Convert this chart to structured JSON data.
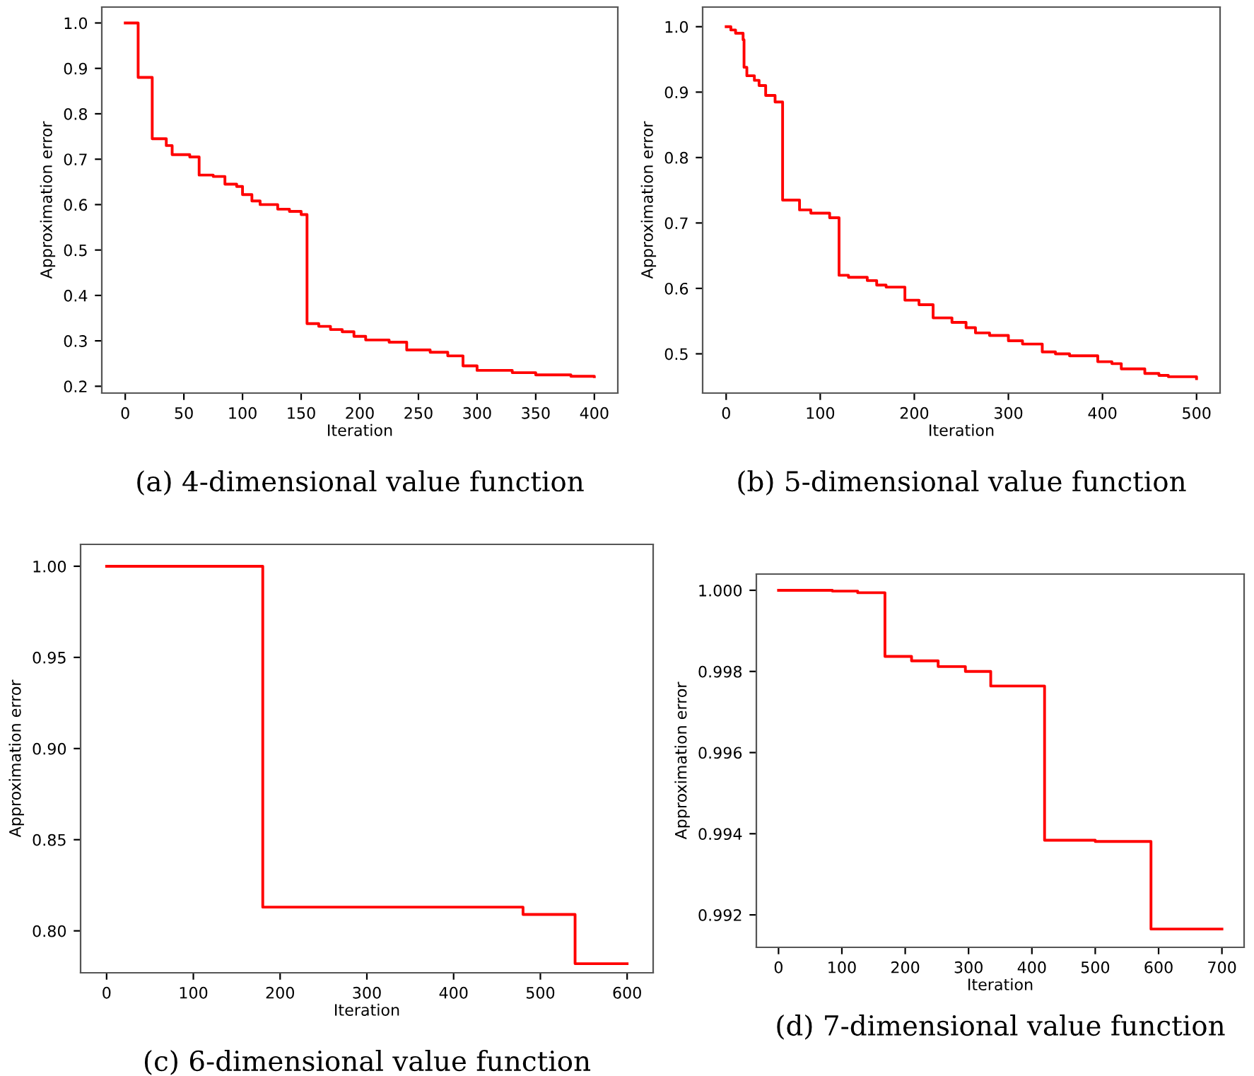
{
  "chart_data": [
    {
      "type": "step",
      "title": "(a) 4-dimensional value function",
      "xlabel": "Iteration",
      "ylabel": "Approximation error",
      "xlim": [
        -20,
        420
      ],
      "ylim": [
        0.185,
        1.035
      ],
      "xticks": [
        0,
        50,
        100,
        150,
        200,
        250,
        300,
        350,
        400
      ],
      "yticks": [
        0.2,
        0.3,
        0.4,
        0.5,
        0.6,
        0.7,
        0.8,
        0.9,
        {
          "value": 1.0,
          "label": "1.0"
        }
      ],
      "grid": false,
      "series": [
        {
          "color": "#ff0000",
          "x": [
            0,
            11,
            23,
            35,
            40,
            55,
            63,
            75,
            85,
            95,
            100,
            108,
            115,
            130,
            140,
            150,
            155,
            165,
            175,
            185,
            195,
            205,
            225,
            240,
            260,
            275,
            288,
            300,
            330,
            350,
            380,
            400
          ],
          "values": [
            1.0,
            0.88,
            0.745,
            0.73,
            0.71,
            0.705,
            0.665,
            0.662,
            0.645,
            0.64,
            0.622,
            0.608,
            0.6,
            0.59,
            0.585,
            0.578,
            0.338,
            0.332,
            0.325,
            0.32,
            0.31,
            0.302,
            0.297,
            0.28,
            0.275,
            0.267,
            0.245,
            0.235,
            0.23,
            0.225,
            0.222,
            0.221
          ]
        }
      ]
    },
    {
      "type": "step",
      "title": "(b) 5-dimensional value function",
      "xlabel": "Iteration",
      "ylabel": "Approximation error",
      "xlim": [
        -25,
        525
      ],
      "ylim": [
        0.44,
        1.03
      ],
      "xticks": [
        0,
        100,
        200,
        300,
        400,
        500
      ],
      "yticks": [
        0.5,
        0.6,
        0.7,
        0.8,
        0.9,
        {
          "value": 1.0,
          "label": "1.0"
        }
      ],
      "grid": false,
      "series": [
        {
          "color": "#ff0000",
          "x": [
            0,
            5,
            10,
            18,
            19,
            22,
            30,
            35,
            42,
            52,
            60,
            78,
            90,
            110,
            120,
            130,
            150,
            160,
            170,
            190,
            205,
            220,
            240,
            255,
            265,
            280,
            300,
            315,
            336,
            350,
            365,
            395,
            410,
            420,
            445,
            460,
            470,
            500
          ],
          "values": [
            1.0,
            0.995,
            0.99,
            0.98,
            0.938,
            0.925,
            0.918,
            0.91,
            0.895,
            0.885,
            0.735,
            0.72,
            0.715,
            0.708,
            0.62,
            0.617,
            0.612,
            0.605,
            0.602,
            0.582,
            0.575,
            0.555,
            0.548,
            0.54,
            0.532,
            0.528,
            0.52,
            0.515,
            0.503,
            0.5,
            0.497,
            0.488,
            0.485,
            0.477,
            0.47,
            0.467,
            0.465,
            0.462
          ]
        }
      ]
    },
    {
      "type": "step",
      "title": "(c) 6-dimensional value function",
      "xlabel": "Iteration",
      "ylabel": "Approximation error",
      "xlim": [
        -30,
        630
      ],
      "ylim": [
        0.777,
        1.012
      ],
      "xticks": [
        0,
        100,
        200,
        300,
        400,
        500,
        600
      ],
      "yticks": [
        {
          "value": 0.8,
          "label": "0.80"
        },
        0.85,
        {
          "value": 0.9,
          "label": "0.90"
        },
        0.95,
        {
          "value": 1.0,
          "label": "1.00"
        }
      ],
      "grid": false,
      "series": [
        {
          "color": "#ff0000",
          "x": [
            0,
            180,
            480,
            540,
            600
          ],
          "values": [
            1.0,
            0.813,
            0.809,
            0.782,
            0.782
          ]
        }
      ]
    },
    {
      "type": "step",
      "title": "(d) 7-dimensional value function",
      "xlabel": "Iteration",
      "ylabel": "Approximation error",
      "xlim": [
        -35,
        735
      ],
      "ylim": [
        0.9912,
        1.0004
      ],
      "xticks": [
        0,
        100,
        200,
        300,
        400,
        500,
        600,
        700
      ],
      "yticks": [
        0.992,
        0.994,
        0.996,
        0.998,
        {
          "value": 1.0,
          "label": "1.000"
        }
      ],
      "grid": false,
      "series": [
        {
          "color": "#ff0000",
          "x": [
            0,
            85,
            125,
            168,
            210,
            252,
            295,
            335,
            420,
            500,
            588,
            700
          ],
          "values": [
            1.0,
            0.99998,
            0.99994,
            0.99837,
            0.99826,
            0.99812,
            0.998,
            0.99764,
            0.99384,
            0.99381,
            0.99165,
            0.99165
          ]
        }
      ]
    }
  ]
}
